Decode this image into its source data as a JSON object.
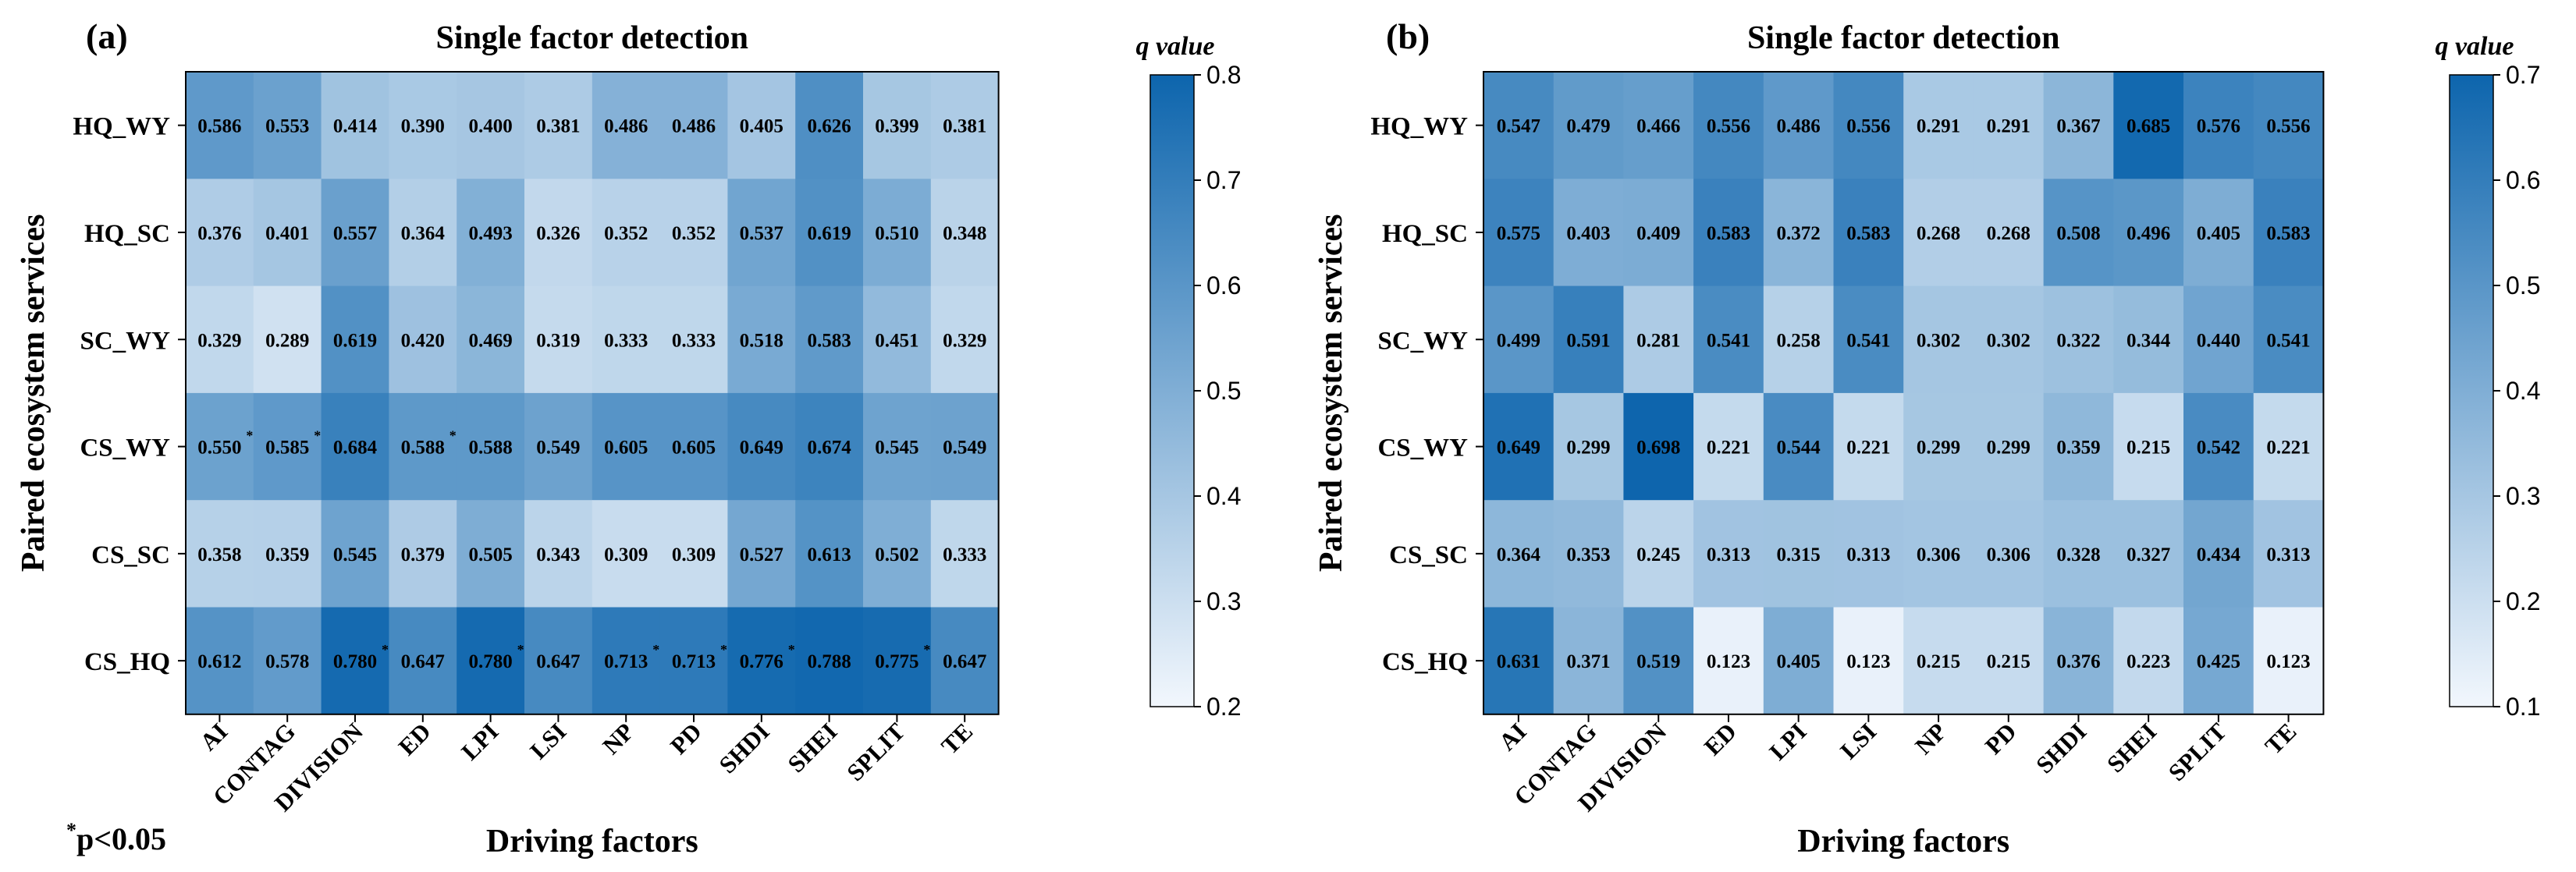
{
  "chart_data": [
    {
      "type": "heatmap",
      "panel_label": "(a)",
      "title": "Single factor detection",
      "xlabel": "Driving factors",
      "ylabel": "Paired ecosystem services",
      "colorbar_title": "q value",
      "colorbar_range": [
        0.2,
        0.8
      ],
      "colorbar_ticks": [
        "0.2",
        "0.3",
        "0.4",
        "0.5",
        "0.6",
        "0.7",
        "0.8"
      ],
      "x_categories": [
        "AI",
        "CONTAG",
        "DIVISION",
        "ED",
        "LPI",
        "LSI",
        "NP",
        "PD",
        "SHDI",
        "SHEI",
        "SPLIT",
        "TE"
      ],
      "y_categories": [
        "HQ_WY",
        "HQ_SC",
        "SC_WY",
        "CS_WY",
        "CS_SC",
        "CS_HQ"
      ],
      "values": [
        [
          0.586,
          0.553,
          0.414,
          0.39,
          0.4,
          0.381,
          0.486,
          0.486,
          0.405,
          0.626,
          0.399,
          0.381
        ],
        [
          0.376,
          0.401,
          0.557,
          0.364,
          0.493,
          0.326,
          0.352,
          0.352,
          0.537,
          0.619,
          0.51,
          0.348
        ],
        [
          0.329,
          0.289,
          0.619,
          0.42,
          0.469,
          0.319,
          0.333,
          0.333,
          0.518,
          0.583,
          0.451,
          0.329
        ],
        [
          0.55,
          0.585,
          0.684,
          0.588,
          0.588,
          0.549,
          0.605,
          0.605,
          0.649,
          0.674,
          0.545,
          0.549
        ],
        [
          0.358,
          0.359,
          0.545,
          0.379,
          0.505,
          0.343,
          0.309,
          0.309,
          0.527,
          0.613,
          0.502,
          0.333
        ],
        [
          0.612,
          0.578,
          0.78,
          0.647,
          0.78,
          0.647,
          0.713,
          0.713,
          0.776,
          0.788,
          0.775,
          0.647
        ]
      ],
      "labels": [
        [
          "0.586",
          "0.553",
          "0.414",
          "0.390",
          "0.400",
          "0.381",
          "0.486",
          "0.486",
          "0.405",
          "0.626",
          "0.399",
          "0.381"
        ],
        [
          "0.376",
          "0.401",
          "0.557",
          "0.364",
          "0.493",
          "0.326",
          "0.352",
          "0.352",
          "0.537",
          "0.619",
          "0.510",
          "0.348"
        ],
        [
          "0.329",
          "0.289",
          "0.619",
          "0.420",
          "0.469",
          "0.319",
          "0.333",
          "0.333",
          "0.518",
          "0.583",
          "0.451",
          "0.329"
        ],
        [
          "0.550",
          "0.585",
          "0.684",
          "0.588",
          "0.588",
          "0.549",
          "0.605",
          "0.605",
          "0.649",
          "0.674",
          "0.545",
          "0.549"
        ],
        [
          "0.358",
          "0.359",
          "0.545",
          "0.379",
          "0.505",
          "0.343",
          "0.309",
          "0.309",
          "0.527",
          "0.613",
          "0.502",
          "0.333"
        ],
        [
          "0.612",
          "0.578",
          "0.780",
          "0.647",
          "0.780",
          "0.647",
          "0.713",
          "0.713",
          "0.776",
          "0.788",
          "0.775",
          "0.647"
        ]
      ],
      "significant": [
        [
          false,
          false,
          false,
          false,
          false,
          false,
          false,
          false,
          false,
          false,
          false,
          false
        ],
        [
          false,
          false,
          false,
          false,
          false,
          false,
          false,
          false,
          false,
          false,
          false,
          false
        ],
        [
          false,
          false,
          false,
          false,
          false,
          false,
          false,
          false,
          false,
          false,
          false,
          false
        ],
        [
          true,
          true,
          false,
          true,
          false,
          false,
          false,
          false,
          false,
          false,
          false,
          false
        ],
        [
          false,
          false,
          false,
          false,
          false,
          false,
          false,
          false,
          false,
          false,
          false,
          false
        ],
        [
          false,
          false,
          true,
          false,
          true,
          false,
          true,
          true,
          true,
          false,
          true,
          false
        ]
      ]
    },
    {
      "type": "heatmap",
      "panel_label": "(b)",
      "title": "Single factor detection",
      "xlabel": "Driving factors",
      "ylabel": "Paired ecosystem services",
      "colorbar_title": "q value",
      "colorbar_range": [
        0.1,
        0.7
      ],
      "colorbar_ticks": [
        "0.1",
        "0.2",
        "0.3",
        "0.4",
        "0.5",
        "0.6",
        "0.7"
      ],
      "x_categories": [
        "AI",
        "CONTAG",
        "DIVISION",
        "ED",
        "LPI",
        "LSI",
        "NP",
        "PD",
        "SHDI",
        "SHEI",
        "SPLIT",
        "TE"
      ],
      "y_categories": [
        "HQ_WY",
        "HQ_SC",
        "SC_WY",
        "CS_WY",
        "CS_SC",
        "CS_HQ"
      ],
      "values": [
        [
          0.547,
          0.479,
          0.466,
          0.556,
          0.486,
          0.556,
          0.291,
          0.291,
          0.367,
          0.685,
          0.576,
          0.556
        ],
        [
          0.575,
          0.403,
          0.409,
          0.583,
          0.372,
          0.583,
          0.268,
          0.268,
          0.508,
          0.496,
          0.405,
          0.583
        ],
        [
          0.499,
          0.591,
          0.281,
          0.541,
          0.258,
          0.541,
          0.302,
          0.302,
          0.322,
          0.344,
          0.44,
          0.541
        ],
        [
          0.649,
          0.299,
          0.698,
          0.221,
          0.544,
          0.221,
          0.299,
          0.299,
          0.359,
          0.215,
          0.542,
          0.221
        ],
        [
          0.364,
          0.353,
          0.245,
          0.313,
          0.315,
          0.313,
          0.306,
          0.306,
          0.328,
          0.327,
          0.434,
          0.313
        ],
        [
          0.631,
          0.371,
          0.519,
          0.123,
          0.405,
          0.123,
          0.215,
          0.215,
          0.376,
          0.223,
          0.425,
          0.123
        ]
      ],
      "labels": [
        [
          "0.547",
          "0.479",
          "0.466",
          "0.556",
          "0.486",
          "0.556",
          "0.291",
          "0.291",
          "0.367",
          "0.685",
          "0.576",
          "0.556"
        ],
        [
          "0.575",
          "0.403",
          "0.409",
          "0.583",
          "0.372",
          "0.583",
          "0.268",
          "0.268",
          "0.508",
          "0.496",
          "0.405",
          "0.583"
        ],
        [
          "0.499",
          "0.591",
          "0.281",
          "0.541",
          "0.258",
          "0.541",
          "0.302",
          "0.302",
          "0.322",
          "0.344",
          "0.440",
          "0.541"
        ],
        [
          "0.649",
          "0.299",
          "0.698",
          "0.221",
          "0.544",
          "0.221",
          "0.299",
          "0.299",
          "0.359",
          "0.215",
          "0.542",
          "0.221"
        ],
        [
          "0.364",
          "0.353",
          "0.245",
          "0.313",
          "0.315",
          "0.313",
          "0.306",
          "0.306",
          "0.328",
          "0.327",
          "0.434",
          "0.313"
        ],
        [
          "0.631",
          "0.371",
          "0.519",
          "0.123",
          "0.405",
          "0.123",
          "0.215",
          "0.215",
          "0.376",
          "0.223",
          "0.425",
          "0.123"
        ]
      ],
      "significant": [
        [
          false,
          false,
          false,
          false,
          false,
          false,
          false,
          false,
          false,
          false,
          false,
          false
        ],
        [
          false,
          false,
          false,
          false,
          false,
          false,
          false,
          false,
          false,
          false,
          false,
          false
        ],
        [
          false,
          false,
          false,
          false,
          false,
          false,
          false,
          false,
          false,
          false,
          false,
          false
        ],
        [
          false,
          false,
          false,
          false,
          false,
          false,
          false,
          false,
          false,
          false,
          false,
          false
        ],
        [
          false,
          false,
          false,
          false,
          false,
          false,
          false,
          false,
          false,
          false,
          false,
          false
        ],
        [
          false,
          false,
          false,
          false,
          false,
          false,
          false,
          false,
          false,
          false,
          false,
          false
        ]
      ]
    }
  ],
  "footnote": {
    "symbol": "*",
    "text": "p<0.05"
  },
  "colors": {
    "low": "#f2f7fd",
    "high": "#0d65ad",
    "text": "#000000"
  }
}
